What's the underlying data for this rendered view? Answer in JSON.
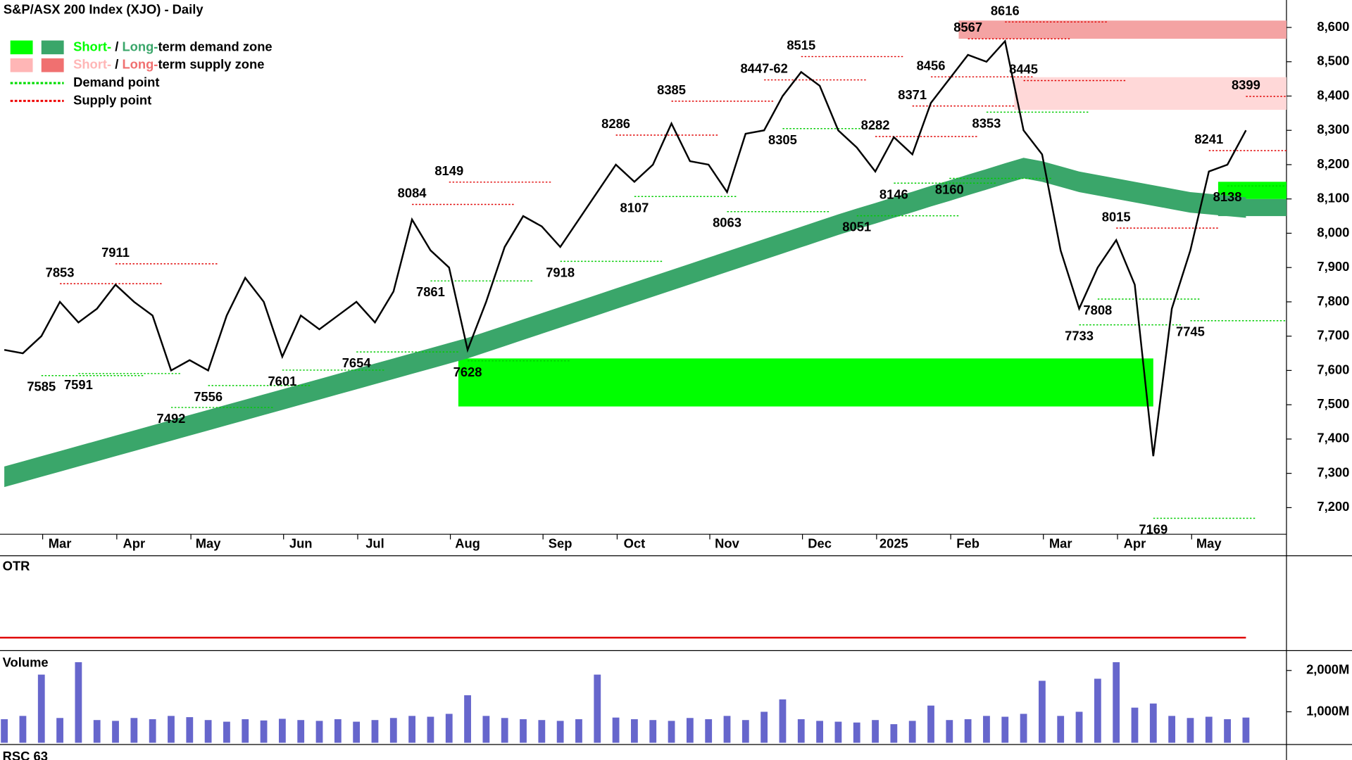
{
  "chart_data": [
    {
      "type": "line",
      "title": "S&P/ASX 200 Index (XJO) - Daily",
      "color": "#000000",
      "categories": [
        null,
        null,
        null,
        "Mar",
        null,
        null,
        null,
        "Apr",
        null,
        null,
        null,
        "May",
        null,
        null,
        null,
        null,
        "Jun",
        null,
        null,
        null,
        "Jul",
        null,
        null,
        null,
        null,
        "Aug",
        null,
        null,
        null,
        null,
        "Sep",
        null,
        null,
        null,
        "Oct",
        null,
        null,
        null,
        null,
        "Nov",
        null,
        null,
        null,
        null,
        "Dec",
        null,
        null,
        null,
        "2025",
        null,
        null,
        null,
        "Feb",
        null,
        null,
        null,
        null,
        "Mar",
        null,
        null,
        null,
        "Apr",
        null,
        null,
        null,
        "May",
        null,
        null
      ],
      "values": [
        7660,
        7650,
        7700,
        7800,
        7740,
        7780,
        7850,
        7800,
        7760,
        7600,
        7630,
        7600,
        7760,
        7870,
        7800,
        7640,
        7760,
        7720,
        7760,
        7800,
        7740,
        7830,
        8040,
        7950,
        7900,
        7660,
        7800,
        7960,
        8050,
        8020,
        7960,
        8040,
        8120,
        8200,
        8150,
        8200,
        8320,
        8210,
        8200,
        8120,
        8290,
        8300,
        8400,
        8470,
        8430,
        8300,
        8250,
        8180,
        8280,
        8230,
        8380,
        8450,
        8520,
        8500,
        8560,
        8300,
        8230,
        7950,
        7780,
        7900,
        7980,
        7850,
        7350,
        7780,
        7950,
        8180,
        8200,
        8300
      ],
      "annotations": {
        "values": [
          null,
          null,
          7585,
          7853,
          7591,
          null,
          7911,
          null,
          null,
          7492,
          null,
          7556,
          null,
          null,
          null,
          7601,
          null,
          null,
          null,
          7654,
          null,
          null,
          8084,
          7861,
          8149,
          7628,
          null,
          null,
          null,
          null,
          7918,
          null,
          null,
          8286,
          8107,
          null,
          8385,
          null,
          null,
          8063,
          null,
          8447,
          8305,
          8515,
          null,
          null,
          8051,
          8282,
          8146,
          8371,
          8456,
          8160,
          8567,
          8353,
          8616,
          8445,
          null,
          null,
          7733,
          7808,
          8015,
          null,
          7169,
          null,
          7745,
          8241,
          8138,
          8399
        ],
        "value_labels": [
          null,
          null,
          null,
          null,
          null,
          null,
          null,
          null,
          null,
          null,
          null,
          null,
          null,
          null,
          null,
          null,
          null,
          null,
          null,
          null,
          null,
          null,
          null,
          null,
          null,
          null,
          null,
          null,
          null,
          null,
          null,
          null,
          null,
          null,
          null,
          null,
          null,
          null,
          null,
          null,
          null,
          "8447-62",
          null,
          null,
          null,
          null,
          null,
          null,
          null,
          null,
          null,
          null,
          null,
          null,
          null,
          null,
          null,
          null,
          null,
          null,
          null,
          null,
          null,
          null,
          null,
          null,
          null,
          null
        ],
        "above_color": "#e00000",
        "below_color": "#00cc00"
      },
      "bands": [
        {
          "color": "#3aa66a",
          "upper": [
            7320,
            7335,
            7350,
            7365,
            7380,
            7395,
            7410,
            7425,
            7440,
            7455,
            7470,
            7485,
            7500,
            7515,
            7530,
            7545,
            7560,
            7575,
            7590,
            7605,
            7620,
            7635,
            7650,
            7665,
            7680,
            7695,
            7713,
            7731,
            7749,
            7767,
            7785,
            7803,
            7821,
            7839,
            7857,
            7875,
            7893,
            7911,
            7929,
            7947,
            7965,
            7983,
            8001,
            8019,
            8037,
            8055,
            8072,
            8088,
            8105,
            8121,
            8138,
            8154,
            8171,
            8187,
            8204,
            8220,
            8210,
            8195,
            8180,
            8170,
            8160,
            8150,
            8140,
            8130,
            8120,
            8115,
            8110,
            8105
          ],
          "lower": [
            7260,
            7275,
            7290,
            7305,
            7320,
            7335,
            7350,
            7365,
            7380,
            7395,
            7410,
            7425,
            7440,
            7455,
            7470,
            7485,
            7500,
            7515,
            7530,
            7545,
            7560,
            7575,
            7590,
            7605,
            7620,
            7635,
            7653,
            7671,
            7689,
            7707,
            7725,
            7743,
            7761,
            7779,
            7797,
            7815,
            7833,
            7851,
            7869,
            7887,
            7905,
            7923,
            7941,
            7959,
            7977,
            7995,
            8012,
            8028,
            8045,
            8061,
            8078,
            8094,
            8111,
            8127,
            8144,
            8160,
            8150,
            8135,
            8120,
            8110,
            8100,
            8090,
            8080,
            8070,
            8060,
            8055,
            8050,
            8045
          ]
        }
      ],
      "zones": [
        {
          "low": 7495,
          "high": 7635,
          "start": 25,
          "end": 62,
          "color": "#00ff00"
        },
        {
          "low": 8567,
          "high": 8620,
          "start": 52,
          "color": "#f4a3a3"
        },
        {
          "low": 8360,
          "high": 8455,
          "start": 55,
          "color": "#ffd8d8"
        },
        {
          "low": 8050,
          "high": 8100,
          "start": 66,
          "color": "#3aa66a"
        },
        {
          "low": 8100,
          "high": 8150,
          "start": 66,
          "color": "#00ff00"
        }
      ],
      "legend": [
        {
          "kind": "zone",
          "parts": [
            "Short-",
            " / ",
            "Long-",
            "term demand zone"
          ],
          "colors": [
            "#00ff00",
            "#3aa66a"
          ]
        },
        {
          "kind": "zone",
          "parts": [
            "Short-",
            " / ",
            "Long-",
            "term supply zone"
          ],
          "colors": [
            "#ffb6b6",
            "#f07070"
          ]
        },
        {
          "kind": "point",
          "parts": [
            "Demand point"
          ],
          "colors": [
            "#00dd00"
          ]
        },
        {
          "kind": "point",
          "parts": [
            "Supply point"
          ],
          "colors": [
            "#ee0000"
          ]
        }
      ],
      "ylim": [
        7130,
        8680
      ],
      "yticks": [
        {
          "value": 7200,
          "label": "7,200"
        },
        {
          "value": 7300,
          "label": "7,300"
        },
        {
          "value": 7400,
          "label": "7,400"
        },
        {
          "value": 7500,
          "label": "7,500"
        },
        {
          "value": 7600,
          "label": "7,600"
        },
        {
          "value": 7700,
          "label": "7,700"
        },
        {
          "value": 7800,
          "label": "7,800"
        },
        {
          "value": 7900,
          "label": "7,900"
        },
        {
          "value": 8000,
          "label": "8,000"
        },
        {
          "value": 8100,
          "label": "8,100"
        },
        {
          "value": 8200,
          "label": "8,200"
        },
        {
          "value": 8300,
          "label": "8,300"
        },
        {
          "value": 8400,
          "label": "8,400"
        },
        {
          "value": 8500,
          "label": "8,500"
        },
        {
          "value": 8600,
          "label": "8,600"
        }
      ]
    },
    {
      "type": "panel",
      "title": "OTR",
      "title_color": "#e00000"
    },
    {
      "type": "bar",
      "title": "Volume",
      "title_color": "#7070c0",
      "color": "#6666cc",
      "values": [
        820,
        900,
        1900,
        850,
        2200,
        800,
        780,
        850,
        820,
        900,
        870,
        800,
        760,
        820,
        790,
        830,
        800,
        780,
        820,
        760,
        800,
        850,
        900,
        880,
        950,
        1400,
        900,
        850,
        820,
        800,
        780,
        820,
        1900,
        860,
        820,
        800,
        780,
        850,
        820,
        900,
        800,
        1000,
        1300,
        820,
        780,
        760,
        740,
        800,
        700,
        780,
        1150,
        800,
        820,
        900,
        880,
        950,
        1750,
        900,
        1000,
        1800,
        2200,
        1100,
        1200,
        900,
        850,
        880,
        820,
        860
      ],
      "ylim": [
        250,
        2440
      ],
      "yticks": [
        {
          "value": 1000,
          "label": "1,000M"
        },
        {
          "value": 2000,
          "label": "2,000M"
        }
      ]
    },
    {
      "type": "panel",
      "title": "RSC 63",
      "title_color": "#008800"
    }
  ]
}
